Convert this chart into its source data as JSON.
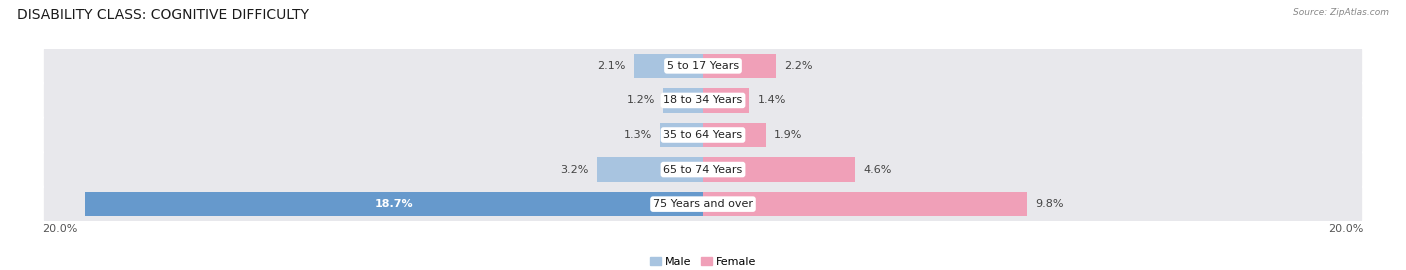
{
  "title": "DISABILITY CLASS: COGNITIVE DIFFICULTY",
  "source": "Source: ZipAtlas.com",
  "categories": [
    "5 to 17 Years",
    "18 to 34 Years",
    "35 to 64 Years",
    "65 to 74 Years",
    "75 Years and over"
  ],
  "male_values": [
    2.1,
    1.2,
    1.3,
    3.2,
    18.7
  ],
  "female_values": [
    2.2,
    1.4,
    1.9,
    4.6,
    9.8
  ],
  "male_color_small": "#a8c4e0",
  "male_color_large": "#6699cc",
  "female_color_small": "#f0a0b8",
  "female_color_large": "#e8608a",
  "row_bg_color": "#e8e8ec",
  "x_max": 20.0,
  "legend_male": "Male",
  "legend_female": "Female",
  "title_fontsize": 10,
  "label_fontsize": 8,
  "tick_fontsize": 8,
  "value_label_color": "#444444",
  "value_label_color_inside": "#ffffff"
}
